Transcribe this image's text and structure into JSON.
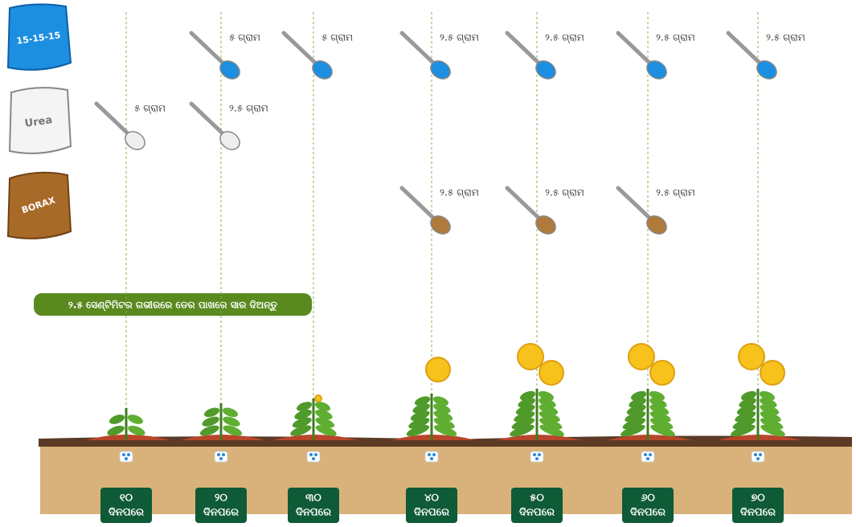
{
  "bags": [
    {
      "label": "15-15-15"
    },
    {
      "label": "Urea"
    },
    {
      "label": "BORAX"
    }
  ],
  "banner": "୨.୫ ସେଣ୍ଟିମିଟର ଗଭୀରରେ ଡେର ପାଖରେ ସାର ଦିଅନ୍ତୁ",
  "stages": [
    {
      "day": "୧୦",
      "unit": "ଦିନପରେ",
      "doses": [
        null,
        "୫ ଗ୍ରାମ",
        null
      ]
    },
    {
      "day": "୨୦",
      "unit": "ଦିନପରେ",
      "doses": [
        "୫ ଗ୍ରାମ",
        "୨.୫ ଗ୍ରାମ",
        null
      ]
    },
    {
      "day": "୩୦",
      "unit": "ଦିନପରେ",
      "doses": [
        "୫ ଗ୍ରାମ",
        null,
        null
      ]
    },
    {
      "day": "୪୦",
      "unit": "ଦିନପରେ",
      "doses": [
        "୨.୫ ଗ୍ରାମ",
        null,
        "୨.୫ ଗ୍ରାମ"
      ]
    },
    {
      "day": "୫୦",
      "unit": "ଦିନପରେ",
      "doses": [
        "୨.୫ ଗ୍ରାମ",
        null,
        "୨.୫ ଗ୍ରାମ"
      ]
    },
    {
      "day": "୬୦",
      "unit": "ଦିନପରେ",
      "doses": [
        "୨.୫ ଗ୍ରାମ",
        null,
        "୨.୫ ଗ୍ରାମ"
      ]
    },
    {
      "day": "୭୦",
      "unit": "ଦିନପରେ",
      "doses": [
        "୨.୫ ଗ୍ରାମ",
        null,
        null
      ]
    }
  ]
}
